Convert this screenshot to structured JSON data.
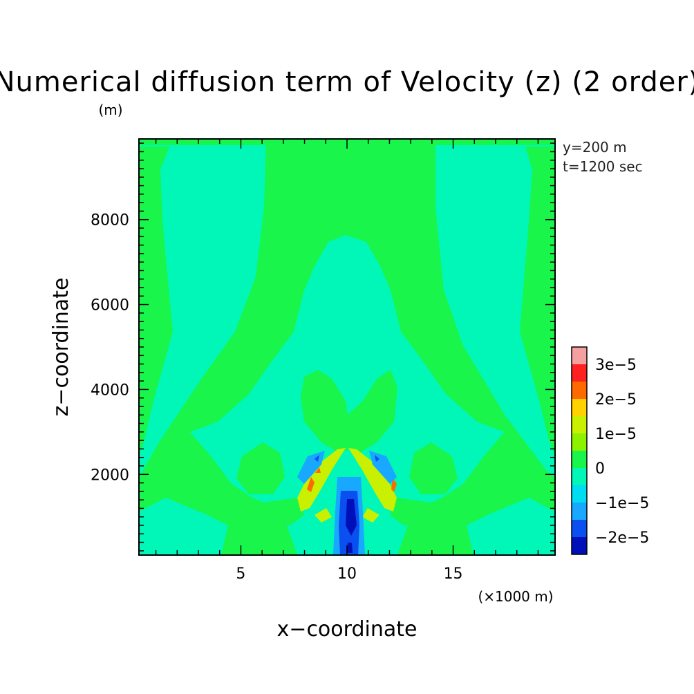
{
  "chart_data": {
    "type": "heatmap",
    "title": "Numerical diffusion term of Velocity (z) (2 order)",
    "y_unit": "(m)",
    "xlabel": "x−coordinate",
    "x_multiplier": "(×1000 m)",
    "ylabel": "z−coordinate",
    "annotations": [
      "y=200 m",
      "t=1200 sec"
    ],
    "xlim": [
      0.2,
      19.8
    ],
    "ylim": [
      100,
      9900
    ],
    "x_ticks": [
      {
        "value": 5,
        "label": "5"
      },
      {
        "value": 10,
        "label": "10"
      },
      {
        "value": 15,
        "label": "15"
      }
    ],
    "y_ticks": [
      {
        "value": 2000,
        "label": "2000"
      },
      {
        "value": 4000,
        "label": "4000"
      },
      {
        "value": 6000,
        "label": "6000"
      },
      {
        "value": 8000,
        "label": "8000"
      }
    ],
    "contour_levels": [
      {
        "lower": -2.5e-05,
        "upper": -2e-05,
        "color": "#0010b8"
      },
      {
        "lower": -2e-05,
        "upper": -1.5e-05,
        "color": "#0a4ff0"
      },
      {
        "lower": -1.5e-05,
        "upper": -1e-05,
        "color": "#19a8ff"
      },
      {
        "lower": -1e-05,
        "upper": -5e-06,
        "color": "#00dcf0"
      },
      {
        "lower": -5e-06,
        "upper": 0,
        "color": "#00f7b8"
      },
      {
        "lower": 0,
        "upper": 5e-06,
        "color": "#19f54a"
      },
      {
        "lower": 5e-06,
        "upper": 1e-05,
        "color": "#8cf200"
      },
      {
        "lower": 1e-05,
        "upper": 1.5e-05,
        "color": "#c8f000"
      },
      {
        "lower": 1.5e-05,
        "upper": 2e-05,
        "color": "#ffd200"
      },
      {
        "lower": 2e-05,
        "upper": 2.5e-05,
        "color": "#ff6a00"
      },
      {
        "lower": 2.5e-05,
        "upper": 3e-05,
        "color": "#ff2020"
      },
      {
        "lower": 3e-05,
        "upper": 3.5e-05,
        "color": "#f5a0a0"
      }
    ],
    "colorbar_labels": [
      {
        "value": 3e-05,
        "label": "3e−5"
      },
      {
        "value": 2e-05,
        "label": "2e−5"
      },
      {
        "value": 1e-05,
        "label": "1e−5"
      },
      {
        "value": 0,
        "label": "0"
      },
      {
        "value": -1e-05,
        "label": "−1e−5"
      },
      {
        "value": -2e-05,
        "label": "−2e−5"
      }
    ],
    "colors": {
      "negative_small": "#00f7b8",
      "positive_small": "#19f54a",
      "positive_mid": "#c8f000",
      "positive_high": "#ff6a00",
      "negative_mid": "#19a8ff",
      "negative_high": "#0a4ff0",
      "negative_max": "#0010b8"
    }
  }
}
